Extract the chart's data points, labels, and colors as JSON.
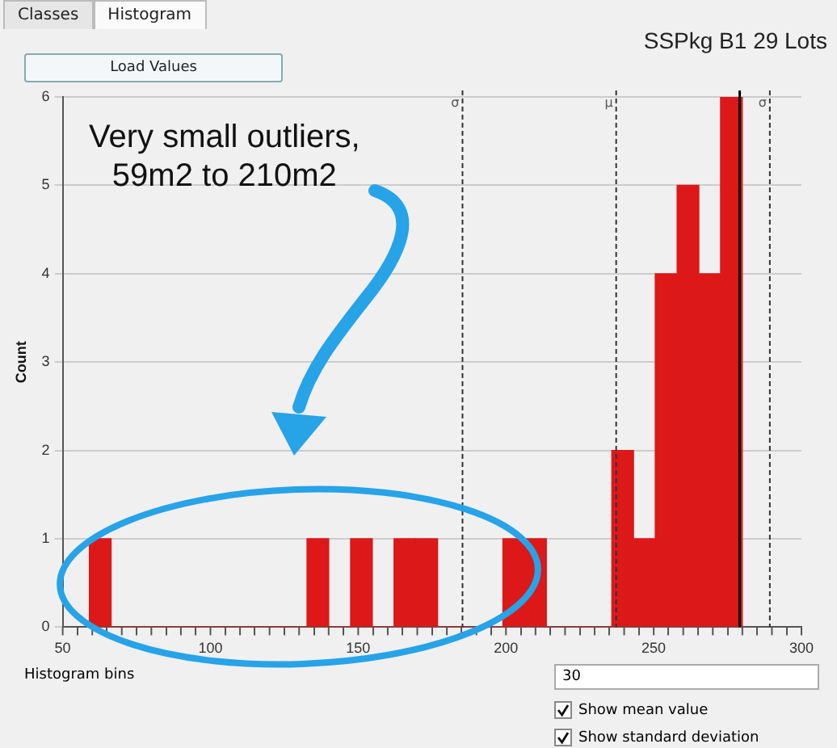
{
  "chart_data": {
    "type": "histogram",
    "title": "SSPkg B1 29 Lots",
    "ylabel": "Count",
    "bins": [
      59.0,
      66.4,
      73.7,
      81.1,
      88.5,
      95.8,
      103.2,
      110.6,
      117.9,
      125.3,
      132.7,
      140.0,
      147.4,
      154.8,
      162.1,
      169.5,
      176.9,
      184.2,
      191.6,
      199.0,
      206.3,
      213.7,
      221.1,
      228.4,
      235.8,
      243.2,
      250.5,
      257.9,
      265.3,
      272.6,
      280.0
    ],
    "values": [
      1,
      0,
      0,
      0,
      0,
      0,
      0,
      0,
      0,
      0,
      1,
      0,
      1,
      0,
      1,
      1,
      0,
      0,
      0,
      1,
      1,
      0,
      0,
      0,
      2,
      1,
      4,
      5,
      4,
      6
    ],
    "color": "#dc1818",
    "xlim": [
      50,
      300
    ],
    "xticks": [
      50,
      {
        "value": 60,
        "label": null
      },
      {
        "value": 70,
        "label": null
      },
      {
        "value": 80,
        "label": null
      },
      {
        "value": 90,
        "label": null
      },
      100,
      {
        "value": 110,
        "label": null
      },
      {
        "value": 120,
        "label": null
      },
      {
        "value": 130,
        "label": null
      },
      {
        "value": 140,
        "label": null
      },
      150,
      {
        "value": 160,
        "label": null
      },
      {
        "value": 170,
        "label": null
      },
      {
        "value": 180,
        "label": null
      },
      {
        "value": 190,
        "label": null
      },
      200,
      {
        "value": 210,
        "label": null
      },
      {
        "value": 220,
        "label": null
      },
      {
        "value": 230,
        "label": null
      },
      {
        "value": 240,
        "label": null
      },
      250,
      {
        "value": 260,
        "label": null
      },
      {
        "value": 270,
        "label": null
      },
      {
        "value": 280,
        "label": null
      },
      {
        "value": 290,
        "label": null
      },
      300
    ],
    "ylim": [
      0,
      6
    ],
    "yticks": [
      0,
      1,
      2,
      3,
      4,
      5,
      6
    ],
    "grid": "y",
    "legend": false,
    "ref_lines": [
      {
        "axis": "x",
        "value": 185.3,
        "label": "σ",
        "color": "#333333",
        "line_style": "dashed"
      },
      {
        "axis": "x",
        "value": 237.3,
        "label": "μ",
        "color": "#333333",
        "line_style": "dashed"
      },
      {
        "axis": "x",
        "value": 279.1,
        "color": "#000000",
        "line_style": "solid"
      },
      {
        "axis": "x",
        "value": 289.3,
        "label": "σ",
        "color": "#333333",
        "line_style": "dashed"
      }
    ],
    "annotations": [
      "Very small outliers, 59m2 to 210m2",
      "Classes",
      "Histogram",
      "Load Values",
      "Histogram bins",
      "30",
      "Show mean value",
      "Show standard deviation"
    ]
  }
}
